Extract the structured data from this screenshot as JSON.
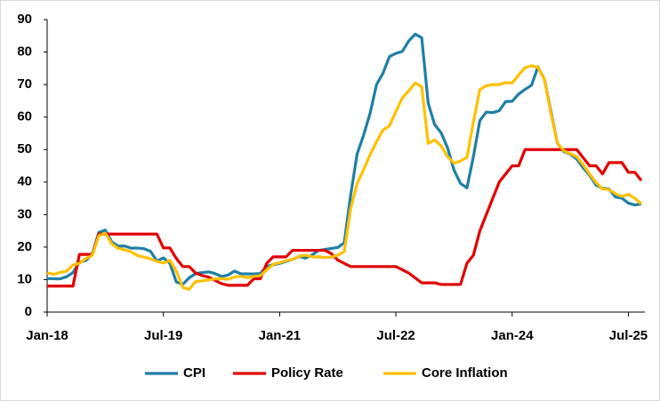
{
  "chart_data": {
    "type": "line",
    "categories": [
      "Jan-18",
      null,
      null,
      null,
      null,
      null,
      null,
      null,
      null,
      null,
      null,
      null,
      null,
      null,
      null,
      null,
      null,
      null,
      "Jul-19",
      null,
      null,
      null,
      null,
      null,
      null,
      null,
      null,
      null,
      null,
      null,
      null,
      null,
      null,
      null,
      null,
      null,
      "Jan-21",
      null,
      null,
      null,
      null,
      null,
      null,
      null,
      null,
      null,
      null,
      null,
      null,
      null,
      null,
      null,
      null,
      null,
      "Jul-22",
      null,
      null,
      null,
      null,
      null,
      null,
      null,
      null,
      null,
      null,
      null,
      null,
      null,
      null,
      null,
      null,
      null,
      "Jan-24",
      null,
      null,
      null,
      null,
      null,
      null,
      null,
      null,
      null,
      null,
      null,
      null,
      null,
      null,
      null,
      null,
      null,
      "Jul-25",
      null,
      null
    ],
    "series": [
      {
        "name": "CPI",
        "color": "#1f7fa6",
        "values": [
          10.35,
          10.26,
          10.23,
          10.85,
          12.15,
          15.39,
          15.85,
          17.9,
          24.52,
          25.24,
          21.62,
          20.3,
          20.35,
          19.67,
          19.71,
          19.5,
          18.71,
          15.72,
          16.65,
          15.01,
          9.26,
          8.55,
          10.56,
          11.84,
          12.15,
          12.37,
          11.86,
          10.94,
          11.39,
          12.62,
          11.76,
          11.77,
          11.75,
          11.89,
          14.03,
          14.6,
          14.97,
          15.61,
          16.19,
          17.14,
          16.59,
          17.53,
          18.95,
          19.25,
          19.58,
          19.89,
          21.31,
          36.08,
          48.69,
          54.44,
          61.14,
          69.97,
          73.5,
          78.62,
          79.6,
          80.21,
          83.45,
          85.51,
          84.39,
          64.27,
          57.68,
          55.18,
          50.51,
          43.68,
          39.59,
          38.21,
          47.83,
          58.94,
          61.53,
          61.36,
          61.98,
          64.77,
          64.86,
          67.07,
          68.5,
          69.8,
          75.45,
          71.6,
          61.78,
          51.97,
          49.38,
          48.58,
          47.09,
          44.38,
          42.12,
          39.05,
          38.1,
          37.86,
          35.41,
          35.05,
          33.52,
          32.95,
          33.29
        ]
      },
      {
        "name": "Policy Rate",
        "color": "#e00000",
        "values": [
          8,
          8,
          8,
          8,
          8,
          17.75,
          17.75,
          17.75,
          24,
          24,
          24,
          24,
          24,
          24,
          24,
          24,
          24,
          24,
          19.75,
          19.75,
          16.5,
          14,
          14,
          12,
          11.25,
          10.75,
          9.75,
          8.75,
          8.25,
          8.25,
          8.25,
          8.25,
          10.25,
          10.25,
          15,
          17,
          17,
          17,
          19,
          19,
          19,
          19,
          19,
          19,
          18,
          16,
          15,
          14,
          14,
          14,
          14,
          14,
          14,
          14,
          14,
          13,
          12,
          10.5,
          9,
          9,
          9,
          8.5,
          8.5,
          8.5,
          8.5,
          15,
          17.5,
          25,
          30,
          35,
          40,
          42.5,
          45,
          45,
          50,
          50,
          50,
          50,
          50,
          50,
          50,
          50,
          50,
          47.5,
          45,
          45,
          42.5,
          46,
          46,
          46,
          43,
          43,
          40.5
        ]
      },
      {
        "name": "Core Inflation",
        "color": "#ffc000",
        "values": [
          12.1,
          11.6,
          12.2,
          12.6,
          14.5,
          15,
          16.5,
          17.5,
          23.5,
          24.3,
          21,
          19.6,
          19.2,
          18.5,
          17.4,
          16.9,
          16.4,
          15.6,
          15.1,
          15.9,
          12.6,
          7.6,
          7,
          9.4,
          9.6,
          9.9,
          10.2,
          10.3,
          10.1,
          10.8,
          11,
          10.6,
          11,
          11.2,
          13,
          14.7,
          15.2,
          15.8,
          16.2,
          17.2,
          17.5,
          17,
          17,
          16.8,
          16.9,
          17.5,
          18.6,
          31.9,
          39.6,
          43.8,
          48.4,
          52.4,
          56,
          57.3,
          61.7,
          65.9,
          68.1,
          70.5,
          69.3,
          51.9,
          53,
          51.1,
          47.8,
          45.8,
          46.5,
          47.6,
          58.5,
          68.5,
          69.6,
          70,
          70,
          70.6,
          70.5,
          72.9,
          75.2,
          75.8,
          75.3,
          71.6,
          61.1,
          52,
          49.6,
          48.7,
          47.8,
          45.3,
          42.5,
          39.8,
          37.9,
          37.7,
          36.4,
          35.6,
          36.2,
          35,
          33.3
        ]
      }
    ],
    "ylim": [
      0,
      90
    ],
    "yticks": [
      0,
      10,
      20,
      30,
      40,
      50,
      60,
      70,
      80,
      90
    ],
    "grid": false,
    "legend": "bottom"
  }
}
